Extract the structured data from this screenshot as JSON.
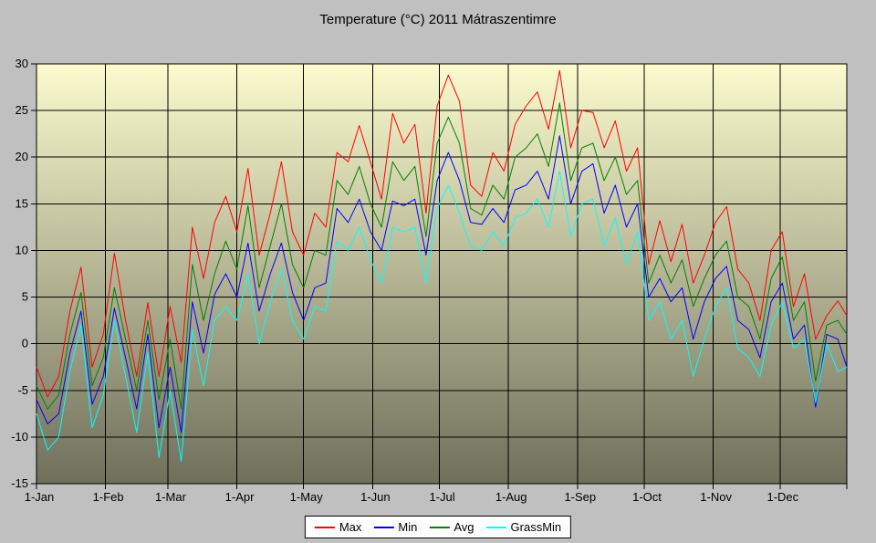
{
  "chart": {
    "title": "Temperature (°C) 2011 Mátraszentimre",
    "background": "#c0c0c0"
  },
  "legend": {
    "position": "bottom-center",
    "items": [
      {
        "label": "Max",
        "color": "#ff0000"
      },
      {
        "label": "Min",
        "color": "#0000ff"
      },
      {
        "label": "Avg",
        "color": "#008000"
      },
      {
        "label": "GrassMin",
        "color": "#00ffff"
      }
    ]
  },
  "chart_data": {
    "type": "line",
    "title": "Temperature (°C) 2011 Mátraszentimre",
    "xlabel": "",
    "ylabel": "",
    "ylim": [
      -15,
      30
    ],
    "y_ticks": [
      30,
      25,
      20,
      15,
      10,
      5,
      0,
      -5,
      -10,
      -15
    ],
    "x_tick_labels": [
      "1-Jan",
      "1-Feb",
      "1-Mar",
      "1-Apr",
      "1-May",
      "1-Jun",
      "1-Jul",
      "1-Aug",
      "1-Sep",
      "1-Oct",
      "1-Nov",
      "1-Dec"
    ],
    "x_tick_days": [
      1,
      32,
      60,
      91,
      121,
      152,
      182,
      213,
      244,
      274,
      305,
      335
    ],
    "x_range_days": [
      1,
      365
    ],
    "grid": true,
    "gridline_color": "#000000",
    "plot_border_color": "#000000",
    "plot_background": {
      "top": "#fbfbce",
      "bottom": "#6f6f5c"
    },
    "sample_interval_days": 5,
    "sample_days": [
      1,
      6,
      11,
      16,
      21,
      26,
      31,
      36,
      41,
      46,
      51,
      56,
      61,
      66,
      71,
      76,
      81,
      86,
      91,
      96,
      101,
      106,
      111,
      116,
      121,
      126,
      131,
      136,
      141,
      146,
      151,
      156,
      161,
      166,
      171,
      176,
      181,
      186,
      191,
      196,
      201,
      206,
      211,
      216,
      221,
      226,
      231,
      236,
      241,
      246,
      251,
      256,
      261,
      266,
      271,
      276,
      281,
      286,
      291,
      296,
      301,
      306,
      311,
      316,
      321,
      326,
      331,
      336,
      341,
      346,
      351,
      356,
      361,
      365
    ],
    "series": [
      {
        "name": "Max",
        "color": "#ff0000",
        "values": [
          -2.5,
          -5.7,
          -3.5,
          3.5,
          8.2,
          -2.5,
          1,
          9.7,
          2.5,
          -3.5,
          4.4,
          -3.5,
          4,
          -2,
          12.5,
          7,
          13,
          15.8,
          12,
          18.8,
          9.5,
          14,
          19.5,
          12,
          9.5,
          14,
          12.5,
          20.5,
          19.5,
          23.4,
          19.5,
          15.5,
          24.7,
          21.5,
          23.5,
          14,
          25.5,
          28.8,
          26,
          17,
          15.8,
          20.5,
          18.5,
          23.5,
          25.5,
          27,
          23,
          29.3,
          21,
          25,
          24.8,
          21,
          23.9,
          18.5,
          21,
          8.5,
          13.2,
          8.8,
          12.8,
          6.5,
          9.5,
          13,
          14.7,
          8,
          6.5,
          2.5,
          10,
          12,
          4,
          7.5,
          0.5,
          3,
          4.6,
          3
        ]
      },
      {
        "name": "Min",
        "color": "#0000ff",
        "values": [
          -6,
          -8.6,
          -7.5,
          -1,
          3.5,
          -6.5,
          -3.5,
          3.8,
          -1.5,
          -7,
          1,
          -9,
          -2.5,
          -9.5,
          4.5,
          -1,
          5.3,
          7.5,
          5,
          10.8,
          3.5,
          7.5,
          10.8,
          5.5,
          2.5,
          6,
          6.5,
          14.5,
          13,
          15.5,
          12,
          10,
          15.3,
          14.8,
          15.5,
          9.5,
          17.5,
          20.5,
          17.5,
          13,
          12.8,
          14.5,
          13,
          16.5,
          17,
          18.5,
          15.5,
          22.3,
          15,
          18.5,
          19.3,
          14,
          17,
          12.5,
          15,
          5,
          7,
          4.5,
          6,
          0.5,
          4.5,
          7,
          8.3,
          2.5,
          1.5,
          -1.5,
          4.5,
          6.5,
          0.5,
          2,
          -6.8,
          1,
          0.5,
          -2.5
        ]
      },
      {
        "name": "Avg",
        "color": "#008000",
        "values": [
          -4.5,
          -7,
          -5.5,
          1,
          5.5,
          -4.5,
          -1.5,
          6,
          0.5,
          -5,
          2.5,
          -6,
          0.5,
          -7,
          8.5,
          2.5,
          7.5,
          11,
          8,
          14.8,
          6,
          10.5,
          15,
          8.5,
          6,
          10,
          9.5,
          17.5,
          16,
          19,
          15,
          12.5,
          19.5,
          17.5,
          19,
          11.5,
          21.5,
          24.3,
          21.5,
          14.5,
          13.8,
          17,
          15.5,
          20,
          21,
          22.5,
          19,
          25.8,
          17.5,
          21,
          21.5,
          17.5,
          20,
          16,
          17.5,
          6.5,
          9.5,
          6.5,
          9,
          4,
          7,
          9.5,
          11,
          5,
          4,
          0.5,
          7,
          9.3,
          2.5,
          4.5,
          -4,
          2,
          2.5,
          1
        ]
      },
      {
        "name": "GrassMin",
        "color": "#00ffff",
        "values": [
          -7.5,
          -11.4,
          -10,
          -3,
          2,
          -9,
          -5.5,
          2.5,
          -3.5,
          -9.5,
          -1,
          -12.2,
          -5,
          -12.6,
          1.5,
          -4.5,
          2.5,
          4,
          2.5,
          7.5,
          0,
          4.5,
          8,
          2.5,
          0.5,
          4,
          3.5,
          11,
          10,
          12.5,
          9,
          6.5,
          12.5,
          12,
          12.5,
          6.5,
          14.5,
          17,
          14,
          10.5,
          10,
          12,
          10.5,
          13.5,
          14,
          15.5,
          12.5,
          18.5,
          11.5,
          15,
          15.5,
          10.5,
          13.5,
          8.5,
          12,
          2.5,
          4.5,
          0.5,
          2.5,
          -3.5,
          0.5,
          4,
          6,
          -0.5,
          -1.5,
          -3.5,
          2,
          4.5,
          -0.5,
          0.5,
          -6.3,
          0,
          -3,
          -2.5
        ]
      }
    ],
    "legend_position": "bottom",
    "legend_entries": [
      "Max",
      "Min",
      "Avg",
      "GrassMin"
    ]
  }
}
